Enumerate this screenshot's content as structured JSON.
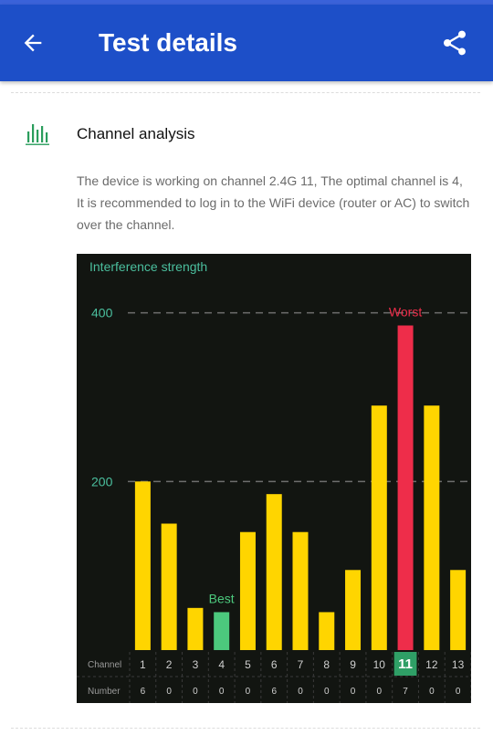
{
  "header": {
    "title": "Test details",
    "back_icon": "arrow-back-icon",
    "share_icon": "share-icon",
    "color": "#1d4fc8"
  },
  "section": {
    "icon": "bar-chart-icon",
    "title": "Channel analysis",
    "description": "The device is working on channel 2.4G 11, The optimal channel is 4, It is recommended to log in to the WiFi device (router or AC) to switch over the channel."
  },
  "chart_data": {
    "type": "bar",
    "title": "Interference strength",
    "categories": [
      "1",
      "2",
      "3",
      "4",
      "5",
      "6",
      "7",
      "8",
      "9",
      "10",
      "11",
      "12",
      "13"
    ],
    "values": [
      200,
      150,
      50,
      45,
      140,
      185,
      140,
      45,
      95,
      290,
      385,
      290,
      95
    ],
    "ylim": [
      0,
      470
    ],
    "yticks": [
      200,
      400
    ],
    "grid": true,
    "row_labels": {
      "channel": "Channel",
      "number": "Number"
    },
    "numbers": [
      "6",
      "0",
      "0",
      "0",
      "0",
      "6",
      "0",
      "0",
      "0",
      "0",
      "7",
      "0",
      "0"
    ],
    "best_channel_index": 3,
    "worst_channel_index": 10,
    "current_channel_index": 10,
    "best_label": "Best",
    "worst_label": "Worst",
    "colors": {
      "normal": "#ffd500",
      "best": "#4cc97d",
      "worst": "#ee2d4a",
      "grid": "#6e6e6e",
      "axis_text": "#4bbf9e",
      "cell_text": "#cfcfcf",
      "background": "#121511"
    }
  }
}
